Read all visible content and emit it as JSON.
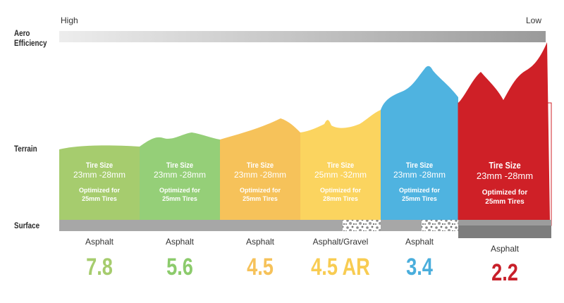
{
  "labels": {
    "aero": "Aero\nEfficiency",
    "aero_line1": "Aero",
    "aero_line2": "Efficiency",
    "terrain": "Terrain",
    "surface": "Surface",
    "high": "High",
    "low": "Low"
  },
  "columns": [
    {
      "tire_title": "Tire Size",
      "tire_size": "23mm -28mm",
      "opt_line1": "Optimized for",
      "opt_line2": "25mm Tires",
      "surface": "Asphalt",
      "score": "7.8",
      "color": "#a6cc6e",
      "score_color": "#a6cc6e"
    },
    {
      "tire_title": "Tire Size",
      "tire_size": "23mm -28mm",
      "opt_line1": "Optimized for",
      "opt_line2": "25mm Tires",
      "surface": "Asphalt",
      "score": "5.6",
      "color": "#95cf78",
      "score_color": "#8ccb6c"
    },
    {
      "tire_title": "Tire Size",
      "tire_size": "23mm -28mm",
      "opt_line1": "Optimized for",
      "opt_line2": "25mm Tires",
      "surface": "Asphalt",
      "score": "4.5",
      "color": "#f6c25a",
      "score_color": "#f6c25a"
    },
    {
      "tire_title": "Tire Size",
      "tire_size": "25mm -32mm",
      "opt_line1": "Optimized for",
      "opt_line2": "28mm Tires",
      "surface": "Asphalt/Gravel",
      "score": "4.5 AR",
      "color": "#fbd45f",
      "score_color": "#f8cc52"
    },
    {
      "tire_title": "Tire Size",
      "tire_size": "23mm -28mm",
      "opt_line1": "Optimized for",
      "opt_line2": "25mm Tires",
      "surface": "Asphalt",
      "score": "3.4",
      "color": "#4fb3e0",
      "score_color": "#4aaedc"
    },
    {
      "tire_title": "Tire Size",
      "tire_size": "23mm -28mm",
      "opt_line1": "Optimized for",
      "opt_line2": "25mm Tires",
      "surface": "Asphalt",
      "score": "2.2",
      "color": "#cf2027",
      "score_color": "#c8202a"
    }
  ],
  "colors": {
    "surface_gray": "#a7a7a7",
    "dark_gray": "#7d7d7d",
    "label": "#2a2a2a"
  }
}
